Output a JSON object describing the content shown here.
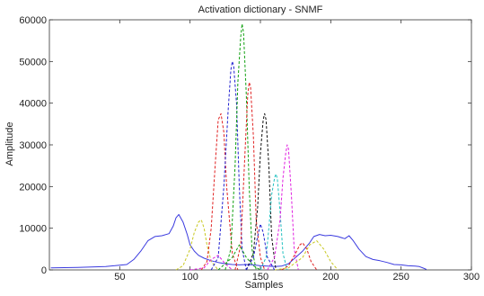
{
  "chart_data": {
    "type": "line",
    "title": "Activation dictionary - SNMF",
    "xlabel": "Samples",
    "ylabel": "Amplitude",
    "xlim": [
      0,
      300
    ],
    "ylim": [
      0,
      60000
    ],
    "x_ticks": [
      50,
      100,
      150,
      200,
      250,
      300
    ],
    "y_ticks": [
      0,
      10000,
      20000,
      30000,
      40000,
      50000,
      60000
    ],
    "x_tick_labels": [
      "50",
      "100",
      "150",
      "200",
      "250",
      "300"
    ],
    "y_tick_labels": [
      "0",
      "10000",
      "20000",
      "30000",
      "40000",
      "50000",
      "60000"
    ],
    "grid": false,
    "legend": "none",
    "series": [
      {
        "color": "#3a3adf",
        "style": "solid",
        "x": [
          1,
          20,
          40,
          55,
          60,
          65,
          70,
          75,
          80,
          85,
          88,
          90,
          92,
          95,
          98,
          100,
          103,
          106,
          110,
          115,
          120,
          125,
          130,
          135,
          140,
          145,
          150,
          155,
          160,
          165,
          170,
          175,
          180,
          185,
          188,
          192,
          196,
          200,
          205,
          210,
          213,
          216,
          220,
          225,
          230,
          235,
          240,
          245,
          250,
          255,
          260,
          263,
          266,
          268
        ],
        "y": [
          500,
          600,
          800,
          1300,
          2500,
          4500,
          7000,
          8000,
          8200,
          8700,
          10500,
          12500,
          13300,
          11500,
          8500,
          6000,
          4500,
          3500,
          2800,
          2200,
          1800,
          1500,
          1300,
          1200,
          1300,
          1200,
          1000,
          900,
          800,
          900,
          1500,
          3000,
          4500,
          6500,
          8000,
          8500,
          8200,
          8300,
          8000,
          7500,
          8200,
          7000,
          5000,
          3200,
          2500,
          2200,
          1800,
          1300,
          1200,
          1000,
          900,
          800,
          400,
          100
        ]
      },
      {
        "color": "#c8c820",
        "style": "dashed",
        "x": [
          90,
          95,
          100,
          103,
          106,
          108,
          110,
          112,
          115,
          120
        ],
        "y": [
          0,
          1000,
          5000,
          9000,
          11500,
          12000,
          10000,
          6000,
          2000,
          0
        ]
      },
      {
        "color": "#e02020",
        "style": "dashed",
        "x": [
          108,
          112,
          115,
          118,
          120,
          122,
          124,
          126,
          130,
          134
        ],
        "y": [
          0,
          2000,
          10000,
          26000,
          36000,
          37500,
          33000,
          20000,
          4000,
          0
        ]
      },
      {
        "color": "#2020d0",
        "style": "dashed",
        "x": [
          115,
          120,
          124,
          127,
          129,
          130,
          131,
          133,
          135,
          137,
          140
        ],
        "y": [
          0,
          3000,
          20000,
          38000,
          48000,
          50000,
          49000,
          40000,
          20000,
          5000,
          0
        ]
      },
      {
        "color": "#10a010",
        "style": "dashed",
        "x": [
          125,
          129,
          132,
          134,
          136,
          137,
          138,
          140,
          142,
          144,
          147
        ],
        "y": [
          0,
          5000,
          25000,
          45000,
          56000,
          59000,
          57000,
          42000,
          20000,
          5000,
          0
        ]
      },
      {
        "color": "#e02020",
        "style": "dashed",
        "x": [
          132,
          136,
          139,
          141,
          142,
          143,
          145,
          147,
          150,
          153
        ],
        "y": [
          0,
          6000,
          28000,
          42000,
          45000,
          44000,
          32000,
          12000,
          3000,
          0
        ]
      },
      {
        "color": "#111111",
        "style": "dashed",
        "x": [
          140,
          145,
          148,
          150,
          152,
          153,
          154,
          156,
          158,
          161
        ],
        "y": [
          0,
          4000,
          15000,
          28000,
          36000,
          37500,
          36000,
          25000,
          8000,
          0
        ]
      },
      {
        "color": "#20c0c0",
        "style": "dashed",
        "x": [
          150,
          154,
          156,
          158,
          160,
          161,
          162,
          164,
          166,
          169
        ],
        "y": [
          0,
          3000,
          10000,
          18000,
          22000,
          23000,
          22000,
          14000,
          4000,
          0
        ]
      },
      {
        "color": "#e020e0",
        "style": "dashed",
        "x": [
          155,
          160,
          164,
          166,
          168,
          169,
          170,
          172,
          174,
          177
        ],
        "y": [
          0,
          3000,
          12000,
          22000,
          28000,
          30000,
          29000,
          18000,
          5000,
          0
        ]
      },
      {
        "color": "#e02020",
        "style": "dashed",
        "x": [
          165,
          170,
          175,
          178,
          180,
          183,
          186,
          190
        ],
        "y": [
          0,
          1000,
          4000,
          6000,
          6500,
          5000,
          2000,
          0
        ]
      },
      {
        "color": "#c8c820",
        "style": "dashed",
        "x": [
          160,
          170,
          180,
          185,
          190,
          195,
          200,
          205
        ],
        "y": [
          0,
          500,
          3000,
          6000,
          7000,
          5000,
          2000,
          0
        ]
      },
      {
        "color": "#10a010",
        "style": "dashed",
        "x": [
          120,
          130,
          135,
          140,
          145,
          150
        ],
        "y": [
          0,
          3000,
          6000,
          3000,
          1000,
          0
        ]
      },
      {
        "color": "#2020d0",
        "style": "dashed",
        "x": [
          140,
          145,
          148,
          150,
          152,
          155,
          160
        ],
        "y": [
          0,
          3000,
          8000,
          11000,
          9000,
          3000,
          0
        ]
      },
      {
        "color": "#e020e0",
        "style": "dashed",
        "x": [
          100,
          110,
          115,
          120,
          125,
          130
        ],
        "y": [
          0,
          500,
          2500,
          3500,
          1500,
          0
        ]
      }
    ]
  }
}
